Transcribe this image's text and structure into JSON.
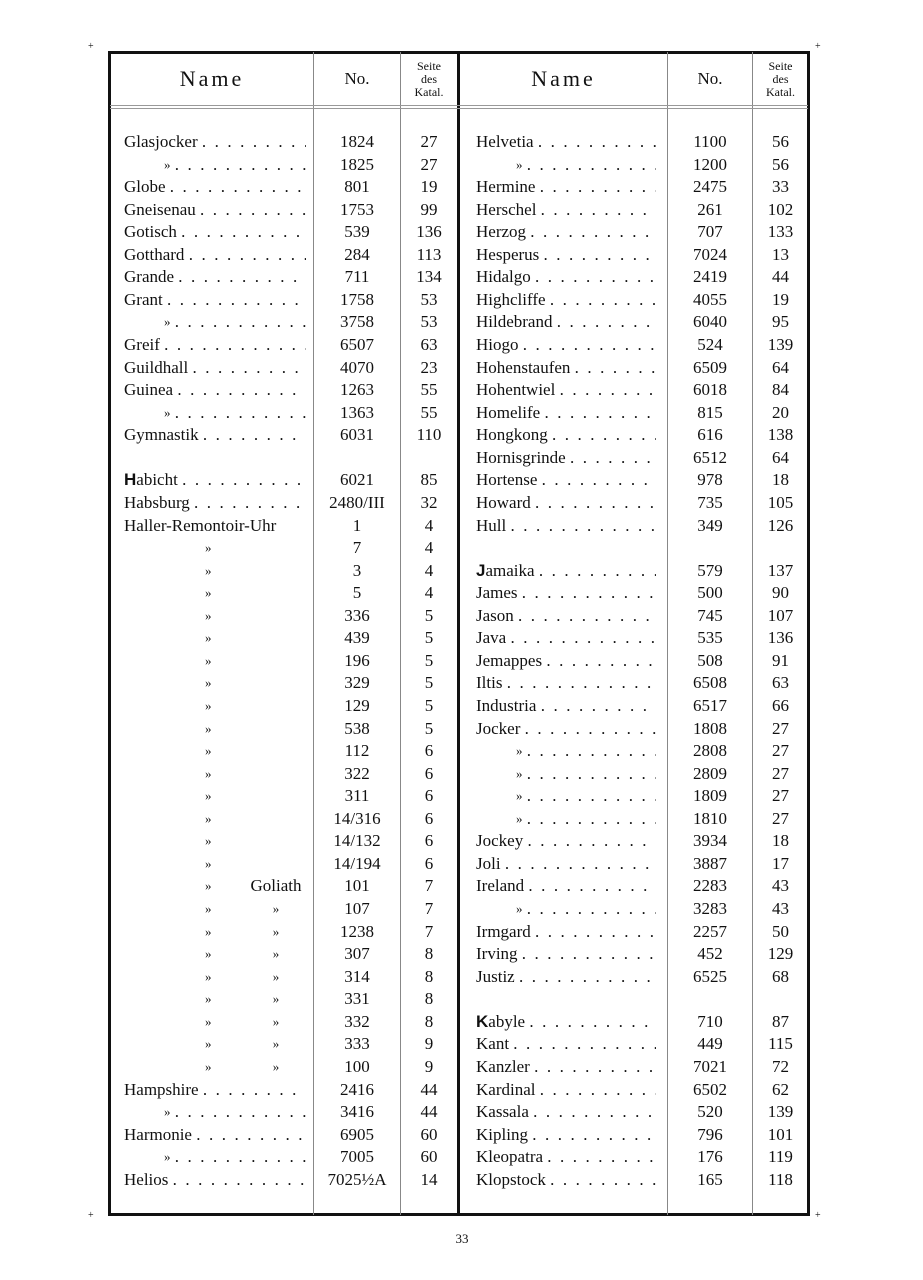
{
  "header": {
    "name_label": "Name",
    "no_label": "No.",
    "seite_label": [
      "Seite",
      "des",
      "Katal."
    ]
  },
  "left_rows": [
    {
      "name": "Glasjocker",
      "no": "1824",
      "page": "27"
    },
    {
      "name": "»",
      "no": "1825",
      "page": "27"
    },
    {
      "name": "Globe",
      "no": "801",
      "page": "19"
    },
    {
      "name": "Gneisenau",
      "no": "1753",
      "page": "99"
    },
    {
      "name": "Gotisch",
      "no": "539",
      "page": "136"
    },
    {
      "name": "Gotthard",
      "no": "284",
      "page": "113"
    },
    {
      "name": "Grande",
      "no": "711",
      "page": "134"
    },
    {
      "name": "Grant",
      "no": "1758",
      "page": "53"
    },
    {
      "name": "»",
      "no": "3758",
      "page": "53"
    },
    {
      "name": "Greif",
      "no": "6507",
      "page": "63"
    },
    {
      "name": "Guildhall",
      "no": "4070",
      "page": "23"
    },
    {
      "name": "Guinea",
      "no": "1263",
      "page": "55"
    },
    {
      "name": "»",
      "no": "1363",
      "page": "55"
    },
    {
      "name": "Gymnastik",
      "no": "6031",
      "page": "110"
    },
    {
      "name": "",
      "no": "",
      "page": ""
    },
    {
      "name": "Habicht",
      "no": "6021",
      "page": "85",
      "initial_bold": true
    },
    {
      "name": "Habsburg",
      "no": "2480/III",
      "page": "32"
    },
    {
      "name": "Haller-Remontoir-Uhr",
      "no": "1",
      "page": "4",
      "no_leader": true
    },
    {
      "name": "»",
      "no": "7",
      "page": "4",
      "sub": true
    },
    {
      "name": "»",
      "no": "3",
      "page": "4",
      "sub": true
    },
    {
      "name": "»",
      "no": "5",
      "page": "4",
      "sub": true
    },
    {
      "name": "»",
      "no": "336",
      "page": "5",
      "sub": true
    },
    {
      "name": "»",
      "no": "439",
      "page": "5",
      "sub": true
    },
    {
      "name": "»",
      "no": "196",
      "page": "5",
      "sub": true
    },
    {
      "name": "»",
      "no": "329",
      "page": "5",
      "sub": true
    },
    {
      "name": "»",
      "no": "129",
      "page": "5",
      "sub": true
    },
    {
      "name": "»",
      "no": "538",
      "page": "5",
      "sub": true
    },
    {
      "name": "»",
      "no": "112",
      "page": "6",
      "sub": true
    },
    {
      "name": "»",
      "no": "322",
      "page": "6",
      "sub": true
    },
    {
      "name": "»",
      "no": "311",
      "page": "6",
      "sub": true
    },
    {
      "name": "»",
      "no": "14/316",
      "page": "6",
      "sub": true
    },
    {
      "name": "»",
      "no": "14/132",
      "page": "6",
      "sub": true
    },
    {
      "name": "»",
      "no": "14/194",
      "page": "6",
      "sub": true
    },
    {
      "name": "»",
      "qualifier": "Goliath",
      "no": "101",
      "page": "7",
      "sub": true
    },
    {
      "name": "»",
      "qualifier": "»",
      "no": "107",
      "page": "7",
      "sub": true
    },
    {
      "name": "»",
      "qualifier": "»",
      "no": "1238",
      "page": "7",
      "sub": true
    },
    {
      "name": "»",
      "qualifier": "»",
      "no": "307",
      "page": "8",
      "sub": true
    },
    {
      "name": "»",
      "qualifier": "»",
      "no": "314",
      "page": "8",
      "sub": true
    },
    {
      "name": "»",
      "qualifier": "»",
      "no": "331",
      "page": "8",
      "sub": true
    },
    {
      "name": "»",
      "qualifier": "»",
      "no": "332",
      "page": "8",
      "sub": true
    },
    {
      "name": "»",
      "qualifier": "»",
      "no": "333",
      "page": "9",
      "sub": true
    },
    {
      "name": "»",
      "qualifier": "»",
      "no": "100",
      "page": "9",
      "sub": true
    },
    {
      "name": "Hampshire",
      "no": "2416",
      "page": "44"
    },
    {
      "name": "»",
      "no": "3416",
      "page": "44"
    },
    {
      "name": "Harmonie",
      "no": "6905",
      "page": "60"
    },
    {
      "name": "»",
      "no": "7005",
      "page": "60"
    },
    {
      "name": "Helios",
      "no": "7025½A",
      "page": "14"
    }
  ],
  "right_rows": [
    {
      "name": "Helvetia",
      "no": "1100",
      "page": "56"
    },
    {
      "name": "»",
      "no": "1200",
      "page": "56"
    },
    {
      "name": "Hermine",
      "no": "2475",
      "page": "33"
    },
    {
      "name": "Herschel",
      "no": "261",
      "page": "102"
    },
    {
      "name": "Herzog",
      "no": "707",
      "page": "133"
    },
    {
      "name": "Hesperus",
      "no": "7024",
      "page": "13"
    },
    {
      "name": "Hidalgo",
      "no": "2419",
      "page": "44"
    },
    {
      "name": "Highcliffe",
      "no": "4055",
      "page": "19"
    },
    {
      "name": "Hildebrand",
      "no": "6040",
      "page": "95"
    },
    {
      "name": "Hiogo",
      "no": "524",
      "page": "139"
    },
    {
      "name": "Hohenstaufen",
      "no": "6509",
      "page": "64"
    },
    {
      "name": "Hohentwiel",
      "no": "6018",
      "page": "84"
    },
    {
      "name": "Homelife",
      "no": "815",
      "page": "20"
    },
    {
      "name": "Hongkong",
      "no": "616",
      "page": "138"
    },
    {
      "name": "Hornisgrinde",
      "no": "6512",
      "page": "64"
    },
    {
      "name": "Hortense",
      "no": "978",
      "page": "18"
    },
    {
      "name": "Howard",
      "no": "735",
      "page": "105"
    },
    {
      "name": "Hull",
      "no": "349",
      "page": "126"
    },
    {
      "name": "",
      "no": "",
      "page": ""
    },
    {
      "name": "Jamaika",
      "no": "579",
      "page": "137",
      "initial_bold": true
    },
    {
      "name": "James",
      "no": "500",
      "page": "90"
    },
    {
      "name": "Jason",
      "no": "745",
      "page": "107"
    },
    {
      "name": "Java",
      "no": "535",
      "page": "136"
    },
    {
      "name": "Jemappes",
      "no": "508",
      "page": "91"
    },
    {
      "name": "Iltis",
      "no": "6508",
      "page": "63"
    },
    {
      "name": "Industria",
      "no": "6517",
      "page": "66"
    },
    {
      "name": "Jocker",
      "no": "1808",
      "page": "27"
    },
    {
      "name": "»",
      "no": "2808",
      "page": "27"
    },
    {
      "name": "»",
      "no": "2809",
      "page": "27"
    },
    {
      "name": "»",
      "no": "1809",
      "page": "27"
    },
    {
      "name": "»",
      "no": "1810",
      "page": "27"
    },
    {
      "name": "Jockey",
      "no": "3934",
      "page": "18"
    },
    {
      "name": "Joli",
      "no": "3887",
      "page": "17"
    },
    {
      "name": "Ireland",
      "no": "2283",
      "page": "43"
    },
    {
      "name": "»",
      "no": "3283",
      "page": "43"
    },
    {
      "name": "Irmgard",
      "no": "2257",
      "page": "50"
    },
    {
      "name": "Irving",
      "no": "452",
      "page": "129"
    },
    {
      "name": "Justiz",
      "no": "6525",
      "page": "68"
    },
    {
      "name": "",
      "no": "",
      "page": ""
    },
    {
      "name": "Kabyle",
      "no": "710",
      "page": "87",
      "initial_bold": true
    },
    {
      "name": "Kant",
      "no": "449",
      "page": "115"
    },
    {
      "name": "Kanzler",
      "no": "7021",
      "page": "72"
    },
    {
      "name": "Kardinal",
      "no": "6502",
      "page": "62"
    },
    {
      "name": "Kassala",
      "no": "520",
      "page": "139"
    },
    {
      "name": "Kipling",
      "no": "796",
      "page": "101"
    },
    {
      "name": "Kleopatra",
      "no": "176",
      "page": "119"
    },
    {
      "name": "Klopstock",
      "no": "165",
      "page": "118"
    }
  ],
  "page_number": "33"
}
